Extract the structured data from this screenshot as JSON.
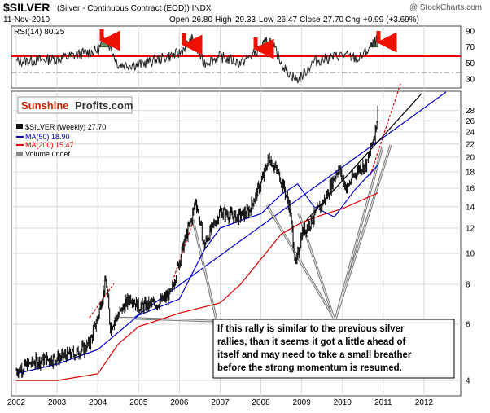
{
  "header": {
    "symbol": "$SILVER",
    "description": "(Silver - Continuous Contract (EOD)) INDX",
    "date": "11-Nov-2010",
    "open_label": "Open",
    "open": "26.80",
    "high_label": "High",
    "high": "29.33",
    "low_label": "Low",
    "low": "26.47",
    "close_label": "Close",
    "close": "27.70",
    "chg_label": "Chg",
    "chg": "+0.99 (+3.69%)",
    "credit": "@ StockCharts.com"
  },
  "rsi_panel": {
    "label": "RSI(14) 80.25",
    "ticks": [
      "90",
      "70",
      "50",
      "30"
    ]
  },
  "brand": {
    "sunshine": "Sunshine",
    "profits": "Profits.com"
  },
  "legend": {
    "price": "$SILVER (Weekly) 27.70",
    "ma50": "MA(50) 18.90",
    "ma200": "MA(200) 15.47",
    "volume": "Volume undef"
  },
  "annotation": "If this rally is similar to the previous silver rallies, than it seems it got a little ahead of itself and may need to take a small breather before the strong momentum is resumed.",
  "colors": {
    "ma50": "#0000cc",
    "ma200": "#dd0000",
    "rsi_70_line": "#ee0000",
    "rsi_fill": "#6b8e6b",
    "arrow": "#ee1100"
  },
  "chart_data": {
    "type": "line",
    "scale": "log",
    "x_ticks": [
      "2002",
      "2003",
      "2004",
      "2005",
      "2006",
      "2007",
      "2008",
      "2009",
      "2010",
      "2011",
      "2012"
    ],
    "y_ticks": [
      4,
      6,
      8,
      10,
      12,
      14,
      16,
      18,
      20,
      22,
      24,
      26,
      28
    ],
    "ylim": [
      3.6,
      32
    ],
    "series": [
      {
        "name": "$SILVER (Weekly)",
        "x": [
          2002.0,
          2002.5,
          2003.0,
          2003.5,
          2003.8,
          2004.0,
          2004.2,
          2004.3,
          2004.5,
          2004.8,
          2005.0,
          2005.5,
          2005.8,
          2006.0,
          2006.3,
          2006.4,
          2006.6,
          2006.8,
          2007.0,
          2007.4,
          2007.7,
          2008.0,
          2008.2,
          2008.5,
          2008.7,
          2008.85,
          2009.0,
          2009.3,
          2009.6,
          2009.9,
          2010.1,
          2010.4,
          2010.6,
          2010.8,
          2010.87
        ],
        "y": [
          4.3,
          4.6,
          4.7,
          4.9,
          5.2,
          6.3,
          8.2,
          5.9,
          6.4,
          7.3,
          6.8,
          7.0,
          7.5,
          9.5,
          12.8,
          14.7,
          10.5,
          12.0,
          13.5,
          13.0,
          13.5,
          16.5,
          20.0,
          17.0,
          14.0,
          9.0,
          11.5,
          13.0,
          15.0,
          18.5,
          16.0,
          18.5,
          19.0,
          24.0,
          27.7
        ]
      },
      {
        "name": "MA(50)",
        "x": [
          2002.0,
          2003.0,
          2004.0,
          2005.0,
          2006.0,
          2006.6,
          2007.0,
          2007.6,
          2008.0,
          2008.5,
          2008.9,
          2009.3,
          2009.8,
          2010.3,
          2010.87
        ],
        "y": [
          4.2,
          4.5,
          5.0,
          6.4,
          7.2,
          10.2,
          12.0,
          12.8,
          13.3,
          15.3,
          16.5,
          14.0,
          13.0,
          15.8,
          18.9
        ]
      },
      {
        "name": "MA(200)",
        "x": [
          2002.0,
          2003.0,
          2004.0,
          2004.5,
          2005.0,
          2006.0,
          2007.0,
          2007.5,
          2008.0,
          2008.5,
          2009.0,
          2009.5,
          2010.0,
          2010.87
        ],
        "y": [
          4.0,
          4.0,
          4.2,
          5.2,
          5.9,
          6.5,
          7.0,
          8.0,
          9.6,
          11.5,
          12.5,
          13.2,
          13.8,
          15.47
        ]
      }
    ],
    "rsi": {
      "name": "RSI(14)",
      "x": [
        2002,
        2003,
        2004,
        2004.2,
        2004.5,
        2005,
        2005.5,
        2006,
        2006.3,
        2006.6,
        2007,
        2007.5,
        2007.9,
        2008.2,
        2008.6,
        2008.9,
        2009.3,
        2010,
        2010.4,
        2010.7,
        2010.87
      ],
      "y": [
        52,
        55,
        66,
        82,
        48,
        48,
        55,
        62,
        80,
        50,
        58,
        50,
        64,
        80,
        42,
        28,
        52,
        60,
        55,
        70,
        80.25
      ]
    }
  }
}
